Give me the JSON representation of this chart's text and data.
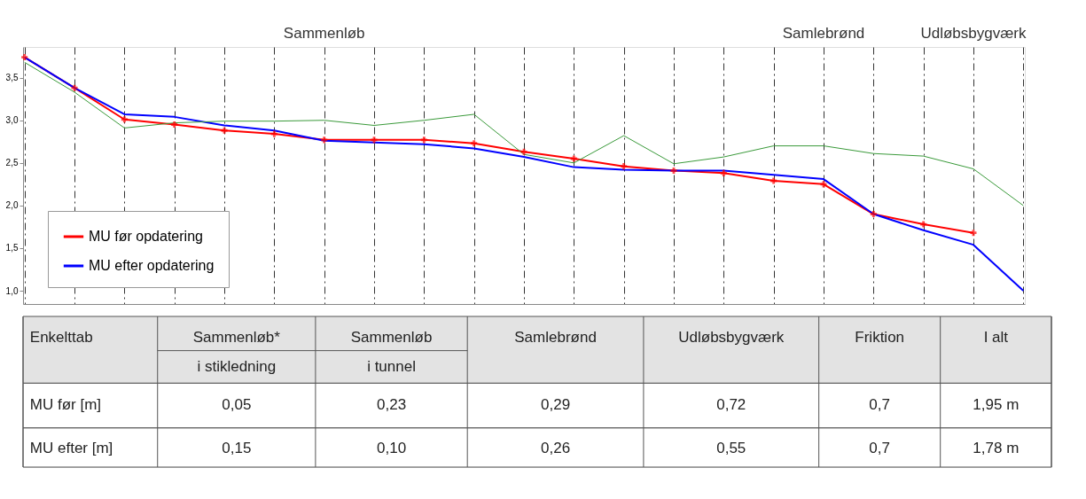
{
  "chart_data": {
    "type": "line",
    "categories": [
      null,
      null,
      null,
      null,
      null,
      null,
      null,
      null,
      null,
      null,
      null,
      null,
      null,
      null,
      null,
      null,
      null,
      null,
      null,
      null,
      null
    ],
    "series": [
      {
        "name": "MU før opdatering",
        "color": "#ff0000",
        "marker": "cross",
        "values": [
          3.74,
          3.38,
          3.01,
          2.95,
          2.88,
          2.84,
          2.77,
          2.77,
          2.77,
          2.73,
          2.63,
          2.55,
          2.46,
          2.41,
          2.38,
          2.29,
          2.25,
          1.9,
          1.78,
          1.68,
          null
        ]
      },
      {
        "name": "MU efter opdatering",
        "color": "#0000ff",
        "values": [
          3.74,
          3.38,
          3.07,
          3.04,
          2.94,
          2.88,
          2.76,
          2.74,
          2.72,
          2.67,
          2.57,
          2.45,
          2.42,
          2.41,
          2.41,
          2.36,
          2.31,
          1.9,
          1.71,
          1.54,
          1.0
        ]
      },
      {
        "color": "#3a9a3a",
        "values": [
          3.68,
          3.33,
          2.91,
          2.97,
          2.99,
          2.99,
          3.0,
          2.94,
          3.0,
          3.07,
          2.6,
          2.5,
          2.82,
          2.49,
          2.57,
          2.7,
          2.7,
          2.61,
          2.58,
          2.43,
          2.0
        ]
      }
    ],
    "ylim": [
      0.845,
      3.86
    ],
    "yticks": [
      {
        "value": 1.0,
        "label": "1,0"
      },
      {
        "value": 1.5,
        "label": "1,5"
      },
      {
        "value": 2.0,
        "label": "2,0"
      },
      {
        "value": 2.5,
        "label": "2,5"
      },
      {
        "value": 3.0,
        "label": "3,0"
      },
      {
        "value": 3.5,
        "label": "3,5"
      }
    ],
    "tick_labels": "y",
    "grid": "x",
    "legend": "bottom left",
    "annotations": [
      "Sammenløb",
      "Samlebrønd",
      "Udløbsbygværk",
      "Enkelttab",
      "Sammenløb*",
      "i stikledning",
      "Sammenløb",
      "i tunnel",
      "Samlebrønd",
      "Udløbsbygværk",
      "Friktion",
      "I alt",
      "MU før [m]",
      "0,05",
      "0,23",
      "0,29",
      "0,72",
      "0,7",
      "1,95  m",
      "MU efter [m]",
      "0,15",
      "0,10",
      "0,26",
      "0,55",
      "0,7",
      "1,78  m"
    ]
  }
}
